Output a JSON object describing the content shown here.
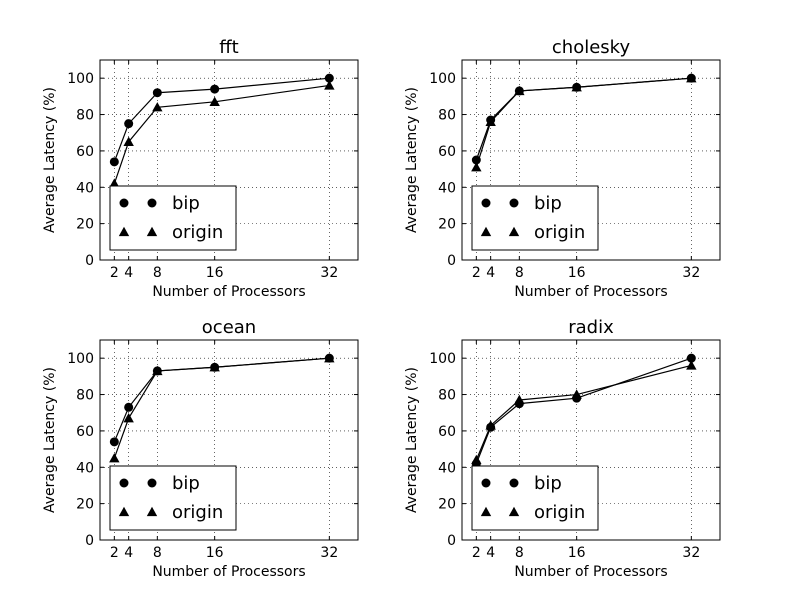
{
  "chart_data": [
    {
      "type": "line",
      "title": "fft",
      "xlabel": "Number of Processors",
      "ylabel": "Average Latency (%)",
      "x": [
        2,
        4,
        8,
        16,
        32
      ],
      "xticks": [
        2,
        4,
        8,
        16,
        32
      ],
      "yticks": [
        0,
        20,
        40,
        60,
        80,
        100
      ],
      "xlim": [
        0,
        36
      ],
      "ylim": [
        0,
        110
      ],
      "grid": true,
      "legend_position": "lower-left",
      "series": [
        {
          "name": "bip",
          "marker": "circle",
          "values": [
            54,
            75,
            92,
            94,
            100
          ]
        },
        {
          "name": "origin",
          "marker": "triangle",
          "values": [
            42,
            65,
            84,
            87,
            96
          ]
        }
      ]
    },
    {
      "type": "line",
      "title": "cholesky",
      "xlabel": "Number of Processors",
      "ylabel": "Average Latency (%)",
      "x": [
        2,
        4,
        8,
        16,
        32
      ],
      "xticks": [
        2,
        4,
        8,
        16,
        32
      ],
      "yticks": [
        0,
        20,
        40,
        60,
        80,
        100
      ],
      "xlim": [
        0,
        36
      ],
      "ylim": [
        0,
        110
      ],
      "grid": true,
      "legend_position": "lower-left",
      "series": [
        {
          "name": "bip",
          "marker": "circle",
          "values": [
            55,
            77,
            93,
            95,
            100
          ]
        },
        {
          "name": "origin",
          "marker": "triangle",
          "values": [
            51,
            76,
            93,
            95,
            100
          ]
        }
      ]
    },
    {
      "type": "line",
      "title": "ocean",
      "xlabel": "Number of Processors",
      "ylabel": "Average Latency (%)",
      "x": [
        2,
        4,
        8,
        16,
        32
      ],
      "xticks": [
        2,
        4,
        8,
        16,
        32
      ],
      "yticks": [
        0,
        20,
        40,
        60,
        80,
        100
      ],
      "xlim": [
        0,
        36
      ],
      "ylim": [
        0,
        110
      ],
      "grid": true,
      "legend_position": "lower-left",
      "series": [
        {
          "name": "bip",
          "marker": "circle",
          "values": [
            54,
            73,
            93,
            95,
            100
          ]
        },
        {
          "name": "origin",
          "marker": "triangle",
          "values": [
            45,
            67,
            93,
            95,
            100
          ]
        }
      ]
    },
    {
      "type": "line",
      "title": "radix",
      "xlabel": "Number of Processors",
      "ylabel": "Average Latency (%)",
      "x": [
        2,
        4,
        8,
        16,
        32
      ],
      "xticks": [
        2,
        4,
        8,
        16,
        32
      ],
      "yticks": [
        0,
        20,
        40,
        60,
        80,
        100
      ],
      "xlim": [
        0,
        36
      ],
      "ylim": [
        0,
        110
      ],
      "grid": true,
      "legend_position": "lower-left",
      "series": [
        {
          "name": "bip",
          "marker": "circle",
          "values": [
            42,
            62,
            75,
            78,
            100
          ]
        },
        {
          "name": "origin",
          "marker": "triangle",
          "values": [
            44,
            63,
            77,
            80,
            96
          ]
        }
      ]
    }
  ]
}
